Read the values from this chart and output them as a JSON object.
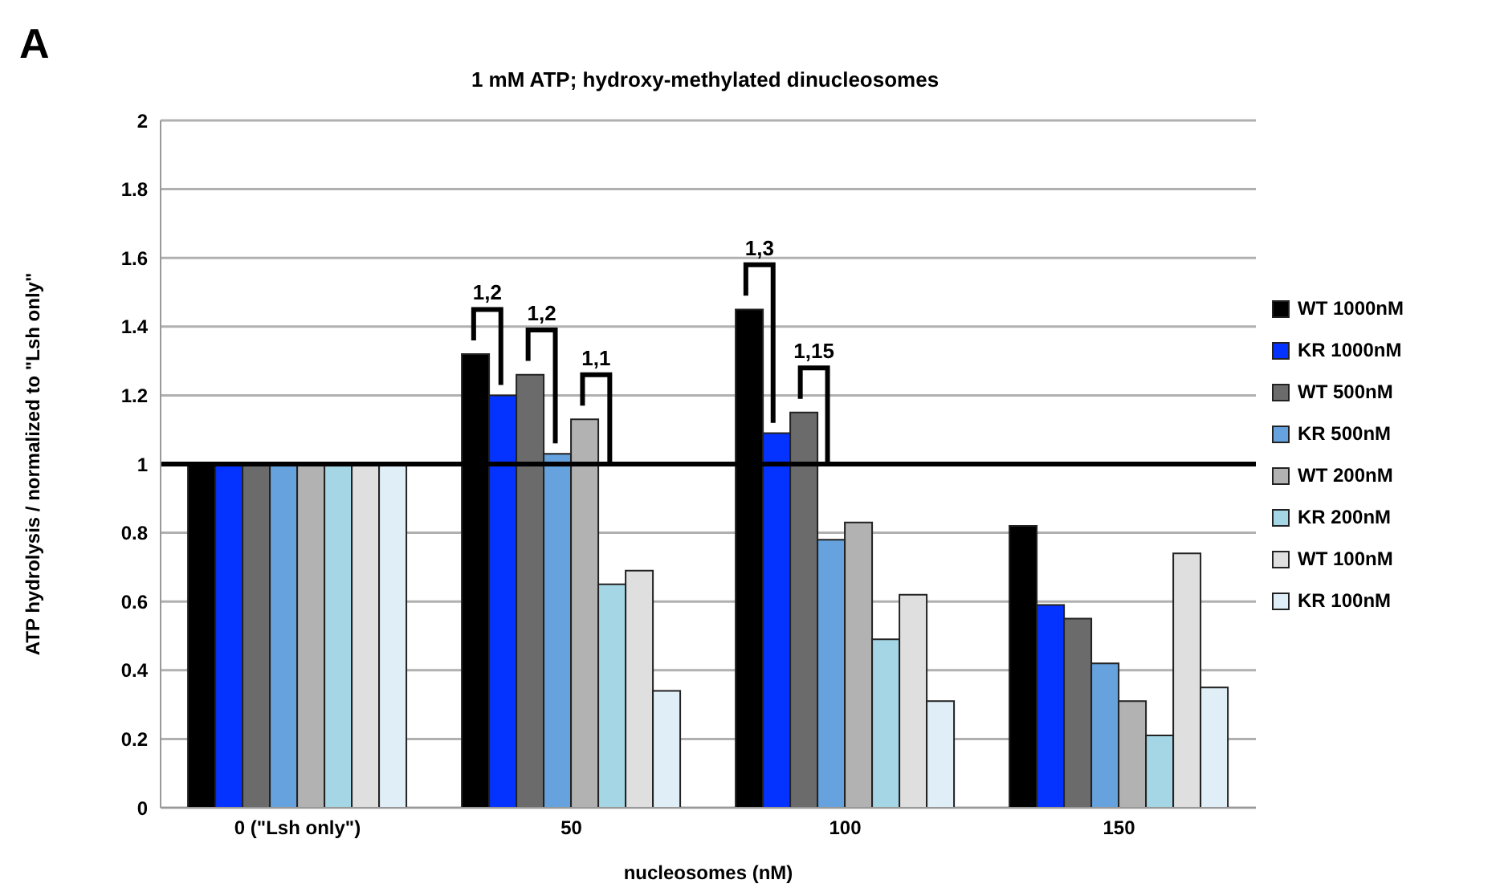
{
  "chart_data": {
    "type": "bar",
    "title": "1 mM ATP; hydroxy-methylated dinucleosomes",
    "xlabel": "nucleosomes (nM)",
    "ylabel": "ATP hydrolysis / normalized to \"Lsh only\"",
    "categories": [
      "0 (\"Lsh only\")",
      "50",
      "100",
      "150"
    ],
    "series": [
      {
        "name": "WT 1000nM",
        "color": "#000000",
        "values": [
          1,
          1.32,
          1.45,
          0.82
        ]
      },
      {
        "name": "KR 1000nM",
        "color": "#0433ff",
        "values": [
          1,
          1.2,
          1.09,
          0.59
        ]
      },
      {
        "name": "WT 500nM",
        "color": "#6b6b6b",
        "values": [
          1,
          1.26,
          1.15,
          0.55
        ]
      },
      {
        "name": "KR 500nM",
        "color": "#65a2de",
        "values": [
          1,
          1.03,
          0.78,
          0.42
        ]
      },
      {
        "name": "WT 200nM",
        "color": "#b2b2b2",
        "values": [
          1,
          1.13,
          0.83,
          0.31
        ]
      },
      {
        "name": "KR 200nM",
        "color": "#a5d6e5",
        "values": [
          1,
          0.65,
          0.49,
          0.21
        ]
      },
      {
        "name": "WT 100nM",
        "color": "#dfdfdf",
        "values": [
          1,
          0.69,
          0.62,
          0.74
        ]
      },
      {
        "name": "KR 100nM",
        "color": "#e0eff7",
        "values": [
          1,
          0.34,
          0.31,
          0.35
        ]
      }
    ],
    "ylim": [
      0,
      2
    ],
    "yticks": [
      0,
      0.2,
      0.4,
      0.6,
      0.8,
      1,
      1.2,
      1.4,
      1.6,
      1.8,
      2
    ],
    "grid": "y",
    "legend": "right",
    "ref_lines": [
      {
        "axis": "y",
        "value": 1,
        "color": "#000000"
      }
    ],
    "annotations": [
      "1,2",
      "1,2",
      "1,1",
      "1,3",
      "1,15",
      "A"
    ]
  }
}
